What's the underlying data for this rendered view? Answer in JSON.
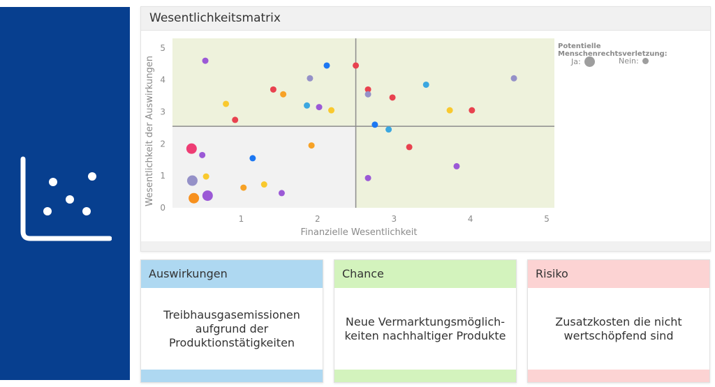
{
  "colors": {
    "sidebar": "#073f8f",
    "quadrant_green": "#eef2dc",
    "quadrant_gray": "#f2f2f2",
    "impact": "#aed8f1",
    "chance": "#d3f3bd",
    "risk": "#fcd3d3"
  },
  "sidebar": {
    "icon": "scatter-chart-icon"
  },
  "chart_panel": {
    "title": "Wesentlichkeitsmatrix"
  },
  "legend": {
    "title": "Potentielle Menschenrechtsverletzung:",
    "yes_label": "Ja:",
    "no_label": "Nein:"
  },
  "chart_data": {
    "type": "scatter",
    "title": "Wesentlichkeitsmatrix",
    "xlabel": "Finanzielle Wesentlichkeit",
    "ylabel": "Wesentlichkeit der Auswirkungen",
    "xlim": [
      0.1,
      5.1
    ],
    "ylim": [
      0,
      5.3
    ],
    "xticks": [
      1,
      2,
      3,
      4,
      5
    ],
    "yticks": [
      0,
      1,
      2,
      3,
      4,
      5
    ],
    "quadrant_split": {
      "x": 2.5,
      "y": 2.55
    },
    "grid": false,
    "legend_position": "right",
    "points": [
      {
        "x": 0.53,
        "y": 4.6,
        "color": "#9b59d6",
        "big": false
      },
      {
        "x": 0.8,
        "y": 3.25,
        "color": "#f9c92e",
        "big": false
      },
      {
        "x": 0.92,
        "y": 2.75,
        "color": "#e8424f",
        "big": false
      },
      {
        "x": 1.42,
        "y": 3.7,
        "color": "#e8424f",
        "big": false
      },
      {
        "x": 1.55,
        "y": 3.55,
        "color": "#f7a226",
        "big": false
      },
      {
        "x": 1.86,
        "y": 3.2,
        "color": "#3ba7e0",
        "big": false
      },
      {
        "x": 1.9,
        "y": 4.05,
        "color": "#9591c8",
        "big": false
      },
      {
        "x": 2.02,
        "y": 3.15,
        "color": "#9b59d6",
        "big": false
      },
      {
        "x": 2.12,
        "y": 4.45,
        "color": "#1c77f2",
        "big": false
      },
      {
        "x": 2.18,
        "y": 3.05,
        "color": "#f9c92e",
        "big": false
      },
      {
        "x": 2.5,
        "y": 4.45,
        "color": "#e8424f",
        "big": false
      },
      {
        "x": 2.66,
        "y": 3.7,
        "color": "#e8424f",
        "big": false
      },
      {
        "x": 2.66,
        "y": 3.55,
        "color": "#9591c8",
        "big": false
      },
      {
        "x": 2.75,
        "y": 2.6,
        "color": "#1c77f2",
        "big": false
      },
      {
        "x": 2.93,
        "y": 2.45,
        "color": "#3ba7e0",
        "big": false
      },
      {
        "x": 2.98,
        "y": 3.45,
        "color": "#e8424f",
        "big": false
      },
      {
        "x": 3.42,
        "y": 3.85,
        "color": "#3ba7e0",
        "big": false
      },
      {
        "x": 3.73,
        "y": 3.05,
        "color": "#f9c92e",
        "big": false
      },
      {
        "x": 4.02,
        "y": 3.05,
        "color": "#e8424f",
        "big": false
      },
      {
        "x": 4.57,
        "y": 4.05,
        "color": "#9591c8",
        "big": false
      },
      {
        "x": 0.35,
        "y": 1.85,
        "color": "#ee3d74",
        "big": true
      },
      {
        "x": 0.49,
        "y": 1.65,
        "color": "#9b59d6",
        "big": false
      },
      {
        "x": 0.36,
        "y": 0.85,
        "color": "#9591c8",
        "big": true
      },
      {
        "x": 0.54,
        "y": 0.98,
        "color": "#f9c92e",
        "big": false
      },
      {
        "x": 0.38,
        "y": 0.3,
        "color": "#f7901e",
        "big": true
      },
      {
        "x": 0.56,
        "y": 0.38,
        "color": "#9b59d6",
        "big": true
      },
      {
        "x": 1.03,
        "y": 0.63,
        "color": "#f7a226",
        "big": false
      },
      {
        "x": 1.15,
        "y": 1.55,
        "color": "#1c77f2",
        "big": false
      },
      {
        "x": 1.3,
        "y": 0.73,
        "color": "#f9c92e",
        "big": false
      },
      {
        "x": 1.53,
        "y": 0.46,
        "color": "#9b59d6",
        "big": false
      },
      {
        "x": 1.92,
        "y": 1.95,
        "color": "#f7a226",
        "big": false
      },
      {
        "x": 2.66,
        "y": 0.93,
        "color": "#9b59d6",
        "big": false
      },
      {
        "x": 3.2,
        "y": 1.9,
        "color": "#e8424f",
        "big": false
      },
      {
        "x": 3.82,
        "y": 1.3,
        "color": "#9b59d6",
        "big": false
      }
    ]
  },
  "cards": [
    {
      "title": "Auswirkungen",
      "text": "Treibhausgasemissionen aufgrund der Produktionstätigkeiten"
    },
    {
      "title": "Chance",
      "text": "Neue Vermarktungsmöglich-keiten nachhaltiger Produkte"
    },
    {
      "title": "Risiko",
      "text": "Zusatzkosten die nicht wertschöpfend sind"
    }
  ]
}
